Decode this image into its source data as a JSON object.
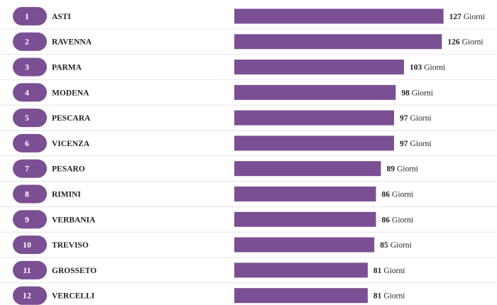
{
  "chart_data": {
    "type": "bar",
    "orientation": "horizontal",
    "unit": "Giorni",
    "categories": [
      "ASTI",
      "RAVENNA",
      "PARMA",
      "MODENA",
      "PESCARA",
      "VICENZA",
      "PESARO",
      "RIMINI",
      "VERBANIA",
      "TREVISO",
      "GROSSETO",
      "VERCELLI"
    ],
    "ranks": [
      "1",
      "2",
      "3",
      "4",
      "5",
      "6",
      "7",
      "8",
      "9",
      "10",
      "11",
      "12"
    ],
    "values": [
      127,
      126,
      103,
      98,
      97,
      97,
      89,
      86,
      86,
      85,
      81,
      81
    ],
    "title": "",
    "xlabel": "",
    "ylabel": "",
    "grid": false,
    "colors": {
      "bar": "#7b4f93",
      "rank_pill": "#7b4f93",
      "rank_text": "#ffffff",
      "label_text": "#222222"
    }
  }
}
